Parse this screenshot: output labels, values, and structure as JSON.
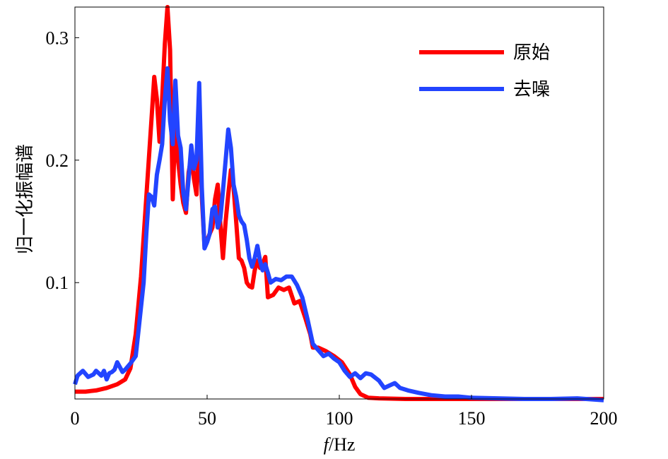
{
  "chart_data": {
    "type": "line",
    "xlabel_italic": "f",
    "xlabel_rest": "/Hz",
    "ylabel": "归一化振幅谱",
    "xlim": [
      0,
      200
    ],
    "ylim": [
      0.005,
      0.325
    ],
    "xticks": [
      "0",
      "50",
      "100",
      "150",
      "200"
    ],
    "yticks": [
      "0.1",
      "0.2",
      "0.3"
    ],
    "xtick_values": [
      0,
      50,
      100,
      150,
      200
    ],
    "ytick_values": [
      0.1,
      0.2,
      0.3
    ],
    "grid": false,
    "legend_position": "top-right",
    "series": [
      {
        "name": "原始",
        "color": "#ff0000",
        "points": [
          [
            0,
            0.011
          ],
          [
            4,
            0.011
          ],
          [
            8,
            0.012
          ],
          [
            12,
            0.014
          ],
          [
            16,
            0.017
          ],
          [
            19,
            0.021
          ],
          [
            21,
            0.03
          ],
          [
            23,
            0.058
          ],
          [
            25,
            0.105
          ],
          [
            27,
            0.17
          ],
          [
            29,
            0.235
          ],
          [
            30,
            0.268
          ],
          [
            31,
            0.25
          ],
          [
            32,
            0.215
          ],
          [
            33,
            0.25
          ],
          [
            34,
            0.295
          ],
          [
            35,
            0.325
          ],
          [
            36,
            0.29
          ],
          [
            37,
            0.168
          ],
          [
            38,
            0.232
          ],
          [
            39,
            0.2
          ],
          [
            40,
            0.18
          ],
          [
            41,
            0.165
          ],
          [
            42,
            0.157
          ],
          [
            43,
            0.19
          ],
          [
            44,
            0.202
          ],
          [
            45,
            0.185
          ],
          [
            46,
            0.172
          ],
          [
            47,
            0.23
          ],
          [
            48,
            0.17
          ],
          [
            49,
            0.13
          ],
          [
            50,
            0.135
          ],
          [
            51,
            0.14
          ],
          [
            52,
            0.145
          ],
          [
            53,
            0.168
          ],
          [
            54,
            0.18
          ],
          [
            55,
            0.148
          ],
          [
            56,
            0.12
          ],
          [
            57,
            0.15
          ],
          [
            58,
            0.172
          ],
          [
            59,
            0.192
          ],
          [
            60,
            0.178
          ],
          [
            61,
            0.15
          ],
          [
            62,
            0.12
          ],
          [
            63,
            0.118
          ],
          [
            64,
            0.112
          ],
          [
            65,
            0.1
          ],
          [
            66,
            0.097
          ],
          [
            67,
            0.096
          ],
          [
            68,
            0.11
          ],
          [
            69,
            0.118
          ],
          [
            70,
            0.112
          ],
          [
            71,
            0.115
          ],
          [
            72,
            0.121
          ],
          [
            73,
            0.088
          ],
          [
            75,
            0.09
          ],
          [
            77,
            0.096
          ],
          [
            79,
            0.094
          ],
          [
            81,
            0.096
          ],
          [
            83,
            0.083
          ],
          [
            85,
            0.085
          ],
          [
            87,
            0.072
          ],
          [
            89,
            0.058
          ],
          [
            90,
            0.047
          ],
          [
            92,
            0.047
          ],
          [
            95,
            0.044
          ],
          [
            98,
            0.04
          ],
          [
            101,
            0.035
          ],
          [
            104,
            0.025
          ],
          [
            106,
            0.015
          ],
          [
            108,
            0.009
          ],
          [
            111,
            0.006
          ],
          [
            115,
            0.0055
          ],
          [
            125,
            0.005
          ],
          [
            150,
            0.005
          ],
          [
            175,
            0.005
          ],
          [
            200,
            0.005
          ]
        ]
      },
      {
        "name": "去噪",
        "color": "#2244ff",
        "points": [
          [
            0,
            0.017
          ],
          [
            1,
            0.024
          ],
          [
            3,
            0.028
          ],
          [
            5,
            0.023
          ],
          [
            7,
            0.025
          ],
          [
            8,
            0.028
          ],
          [
            9,
            0.026
          ],
          [
            10,
            0.024
          ],
          [
            11,
            0.028
          ],
          [
            12,
            0.021
          ],
          [
            13,
            0.026
          ],
          [
            14,
            0.027
          ],
          [
            15,
            0.029
          ],
          [
            16,
            0.035
          ],
          [
            17,
            0.031
          ],
          [
            18,
            0.027
          ],
          [
            19,
            0.029
          ],
          [
            21,
            0.034
          ],
          [
            23,
            0.04
          ],
          [
            24,
            0.06
          ],
          [
            26,
            0.1
          ],
          [
            27,
            0.14
          ],
          [
            28,
            0.172
          ],
          [
            29,
            0.17
          ],
          [
            30,
            0.163
          ],
          [
            31,
            0.188
          ],
          [
            32,
            0.2
          ],
          [
            33,
            0.213
          ],
          [
            34,
            0.25
          ],
          [
            35,
            0.275
          ],
          [
            36,
            0.232
          ],
          [
            37,
            0.213
          ],
          [
            38,
            0.265
          ],
          [
            39,
            0.22
          ],
          [
            40,
            0.21
          ],
          [
            41,
            0.173
          ],
          [
            42,
            0.16
          ],
          [
            43,
            0.185
          ],
          [
            44,
            0.212
          ],
          [
            45,
            0.193
          ],
          [
            46,
            0.2
          ],
          [
            47,
            0.263
          ],
          [
            48,
            0.178
          ],
          [
            49,
            0.128
          ],
          [
            50,
            0.133
          ],
          [
            51,
            0.14
          ],
          [
            52,
            0.16
          ],
          [
            53,
            0.162
          ],
          [
            54,
            0.145
          ],
          [
            55,
            0.152
          ],
          [
            56,
            0.175
          ],
          [
            57,
            0.2
          ],
          [
            58,
            0.225
          ],
          [
            59,
            0.21
          ],
          [
            60,
            0.18
          ],
          [
            61,
            0.17
          ],
          [
            62,
            0.155
          ],
          [
            63,
            0.15
          ],
          [
            64,
            0.147
          ],
          [
            65,
            0.135
          ],
          [
            66,
            0.12
          ],
          [
            67,
            0.113
          ],
          [
            68,
            0.12
          ],
          [
            69,
            0.13
          ],
          [
            70,
            0.118
          ],
          [
            71,
            0.11
          ],
          [
            72,
            0.115
          ],
          [
            73,
            0.108
          ],
          [
            74,
            0.1
          ],
          [
            76,
            0.103
          ],
          [
            78,
            0.102
          ],
          [
            80,
            0.105
          ],
          [
            82,
            0.105
          ],
          [
            84,
            0.098
          ],
          [
            86,
            0.088
          ],
          [
            88,
            0.07
          ],
          [
            90,
            0.05
          ],
          [
            92,
            0.045
          ],
          [
            94,
            0.04
          ],
          [
            96,
            0.042
          ],
          [
            98,
            0.038
          ],
          [
            100,
            0.035
          ],
          [
            102,
            0.028
          ],
          [
            104,
            0.023
          ],
          [
            106,
            0.026
          ],
          [
            108,
            0.022
          ],
          [
            110,
            0.026
          ],
          [
            112,
            0.025
          ],
          [
            115,
            0.02
          ],
          [
            117,
            0.014
          ],
          [
            119,
            0.016
          ],
          [
            121,
            0.018
          ],
          [
            123,
            0.014
          ],
          [
            126,
            0.012
          ],
          [
            130,
            0.01
          ],
          [
            135,
            0.008
          ],
          [
            140,
            0.007
          ],
          [
            145,
            0.007
          ],
          [
            150,
            0.006
          ],
          [
            160,
            0.0055
          ],
          [
            170,
            0.005
          ],
          [
            180,
            0.005
          ],
          [
            190,
            0.0055
          ],
          [
            200,
            0.004
          ]
        ]
      }
    ]
  }
}
